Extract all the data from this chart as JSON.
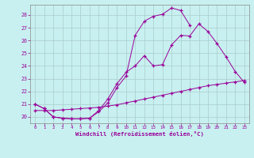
{
  "background_color": "#c8f0f0",
  "line_color": "#990099",
  "xlabel": "Windchill (Refroidissement éolien,°C)",
  "xlim": [
    -0.5,
    23.5
  ],
  "ylim": [
    19.5,
    28.8
  ],
  "yticks": [
    20,
    21,
    22,
    23,
    24,
    25,
    26,
    27,
    28
  ],
  "xticks": [
    0,
    1,
    2,
    3,
    4,
    5,
    6,
    7,
    8,
    9,
    10,
    11,
    12,
    13,
    14,
    15,
    16,
    17,
    18,
    19,
    20,
    21,
    22,
    23
  ],
  "curve_top_x": [
    0,
    1,
    2,
    3,
    4,
    5,
    6,
    7,
    8,
    9,
    10,
    11,
    12,
    13,
    14,
    15,
    16,
    17
  ],
  "curve_top_y": [
    21.0,
    20.65,
    20.0,
    19.9,
    19.85,
    19.85,
    19.9,
    20.4,
    21.1,
    22.3,
    23.2,
    26.4,
    27.5,
    27.9,
    28.05,
    28.55,
    28.35,
    27.2
  ],
  "curve_mid_x": [
    0,
    1,
    2,
    3,
    4,
    5,
    6,
    7,
    8,
    9,
    10,
    11,
    12,
    13,
    14,
    15,
    16,
    17,
    18,
    19,
    20,
    21,
    22,
    23
  ],
  "curve_mid_y": [
    21.0,
    20.65,
    20.0,
    19.9,
    19.85,
    19.85,
    19.9,
    20.5,
    21.4,
    22.6,
    23.5,
    24.0,
    24.8,
    24.0,
    24.1,
    25.65,
    26.4,
    26.35,
    27.3,
    26.7,
    25.75,
    24.7,
    23.55,
    22.7
  ],
  "curve_low_x": [
    0,
    1,
    2,
    3,
    4,
    5,
    6,
    7,
    8,
    9,
    10,
    11,
    12,
    13,
    14,
    15,
    16,
    17,
    18,
    19,
    20,
    21,
    22,
    23
  ],
  "curve_low_y": [
    20.5,
    20.5,
    20.5,
    20.55,
    20.6,
    20.65,
    20.7,
    20.75,
    20.85,
    20.95,
    21.1,
    21.25,
    21.4,
    21.55,
    21.7,
    21.85,
    22.0,
    22.15,
    22.3,
    22.45,
    22.55,
    22.65,
    22.75,
    22.85
  ],
  "grid_color": "#aacccc"
}
